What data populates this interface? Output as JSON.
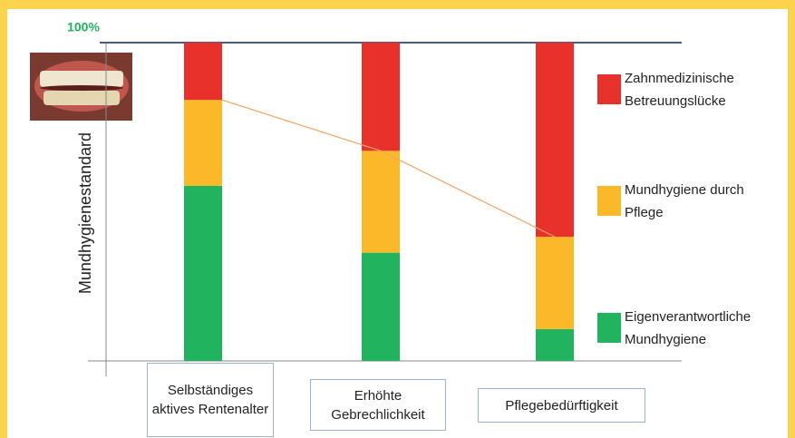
{
  "chart_data": {
    "type": "stacked_bar",
    "y_label": "Mundhygienestandard",
    "categories": [
      "Selbständiges aktives Rentenalter",
      "Erhöhte Gebrechlichkeit",
      "Pflegebedürftigkeit"
    ],
    "series": [
      {
        "name": "Eigenverantwortliche Mundhygiene",
        "color": "#22b35e",
        "values": [
          55,
          34,
          10
        ]
      },
      {
        "name": "Mundhygiene durch Pflege",
        "color": "#fbb829",
        "values": [
          27,
          32,
          29
        ]
      },
      {
        "name": "Zahnmedizinische Betreuungslücke",
        "color": "#e8312a",
        "values": [
          18,
          34,
          61
        ]
      }
    ],
    "ylim": [
      0,
      100
    ],
    "yticks": [
      {
        "value": 100,
        "label": "100%"
      }
    ]
  }
}
